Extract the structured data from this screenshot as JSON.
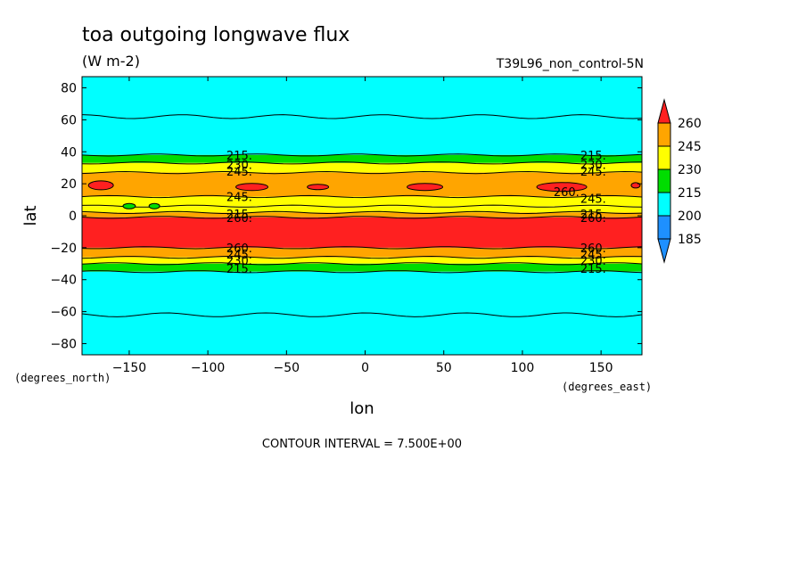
{
  "chart_data": {
    "type": "contour",
    "title": "toa outgoing longwave flux",
    "units": "(W m-2)",
    "run_label": "T39L96_non_control-5N",
    "xlabel": "lon",
    "ylabel": "lat",
    "x_units": "(degrees_east)",
    "y_units": "(degrees_north)",
    "xlim": [
      -180,
      176
    ],
    "ylim": [
      -87,
      87
    ],
    "x_ticks": [
      -150,
      -100,
      -50,
      0,
      50,
      100,
      150
    ],
    "y_ticks": [
      80,
      60,
      40,
      20,
      0,
      -20,
      -40,
      -60,
      -80
    ],
    "contour_interval_text": "CONTOUR INTERVAL = 7.500E+00",
    "colorbar": {
      "levels": [
        185,
        200,
        215,
        230,
        245,
        260
      ],
      "colors": [
        "#1e90ff",
        "#00ffff",
        "#00dd00",
        "#ffff00",
        "#ffa500",
        "#ff2020"
      ],
      "extend": "both"
    },
    "bands": [
      {
        "lat_top": 87,
        "lat_bottom": 38,
        "value": "200-215"
      },
      {
        "lat_top": 38,
        "lat_bottom": 33,
        "value": "215-230"
      },
      {
        "lat_top": 33,
        "lat_bottom": 27,
        "value": "230-245"
      },
      {
        "lat_top": 27,
        "lat_bottom": 12,
        "value": "245-260"
      },
      {
        "lat_top": 12,
        "lat_bottom": 6,
        "value": "230-245"
      },
      {
        "lat_top": 6,
        "lat_bottom": 2,
        "value": "230-245"
      },
      {
        "lat_top": 2,
        "lat_bottom": -1,
        "value": "245-260"
      },
      {
        "lat_top": -1,
        "lat_bottom": -20,
        "value": ">260"
      },
      {
        "lat_top": -20,
        "lat_bottom": -26,
        "value": "245-260"
      },
      {
        "lat_top": -26,
        "lat_bottom": -30,
        "value": "230-245"
      },
      {
        "lat_top": -30,
        "lat_bottom": -35,
        "value": "215-230"
      },
      {
        "lat_top": -35,
        "lat_bottom": -87,
        "value": "200-215"
      }
    ],
    "contour_labels_left": [
      "215.",
      "230.",
      "245.",
      "245.",
      "215.",
      "260.",
      "260.",
      "245.",
      "230.",
      "215."
    ],
    "contour_labels_right": [
      "215.",
      "230.",
      "245.",
      "260.",
      "245.",
      "215.",
      "260.",
      "260.",
      "245.",
      "230.",
      "215."
    ]
  }
}
